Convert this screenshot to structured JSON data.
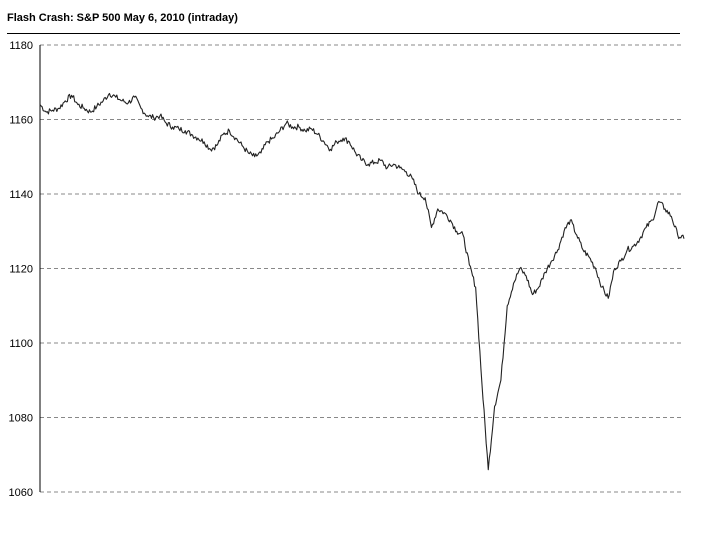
{
  "chart_data": {
    "type": "line",
    "title": "Flash Crash: S&P 500 May 6, 2010 (intraday)",
    "xlabel": "",
    "ylabel": "",
    "ylim": [
      1060,
      1180
    ],
    "yticks": [
      1060,
      1080,
      1100,
      1120,
      1140,
      1160,
      1180
    ],
    "grid": "horizontal dashed",
    "legend": "none",
    "colors": {
      "line": "#222222",
      "grid": "#888888",
      "axis": "#000000"
    },
    "series": [
      {
        "index_start": 0,
        "index_step": 1,
        "values": [
          1164,
          1162,
          1162.5,
          1163,
          1165,
          1166.5,
          1164,
          1163,
          1162,
          1163.5,
          1165,
          1167,
          1166,
          1165,
          1164.5,
          1166,
          1163,
          1161,
          1160.5,
          1161,
          1159,
          1158,
          1157.5,
          1157,
          1156,
          1155,
          1154,
          1152,
          1153,
          1156,
          1157,
          1155,
          1153,
          1151,
          1150,
          1151,
          1154,
          1155,
          1157,
          1159,
          1158,
          1158,
          1157,
          1157.5,
          1156,
          1154,
          1152,
          1154,
          1155,
          1154,
          1151,
          1149,
          1148,
          1148.5,
          1149,
          1147,
          1148,
          1147,
          1146,
          1144,
          1140,
          1139,
          1131,
          1136,
          1135,
          1133,
          1130,
          1129,
          1121,
          1115,
          1089,
          1066,
          1083,
          1090,
          1110,
          1116,
          1120,
          1118,
          1113,
          1115,
          1119,
          1122,
          1125,
          1130,
          1133,
          1129,
          1125,
          1123,
          1120,
          1115,
          1112,
          1120,
          1122,
          1125,
          1126,
          1128,
          1131,
          1133,
          1138,
          1136,
          1134,
          1129,
          1128
        ]
      }
    ]
  }
}
